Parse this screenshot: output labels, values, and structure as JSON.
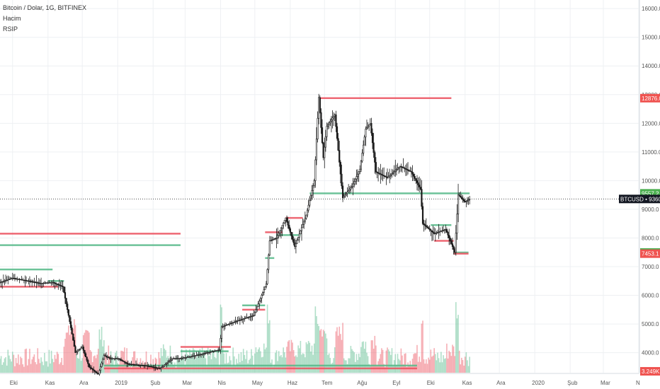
{
  "legend": {
    "symbol_line": "Bitcoin / Dolar, 1G, BITFINEX",
    "indicator_1": "Hacim",
    "indicator_2": "RSIP"
  },
  "colors": {
    "up": "#53b987",
    "down": "#eb4d5c",
    "candle_body": "#1a1a1a",
    "grid": "#eef0f3",
    "last_price_tag": "#131722",
    "red_tag": "#ef5350",
    "green_tag": "#4caf50"
  },
  "chart_data": {
    "type": "candlestick",
    "y_axis": {
      "ticks": [
        4000,
        5000,
        6000,
        7000,
        8000,
        9000,
        10000,
        11000,
        12000,
        13000,
        14000,
        15000,
        16000
      ],
      "tick_labels": [
        "4000.0",
        "5000.0",
        "6000.0",
        "7000.0",
        "8000.0",
        "9000.0",
        "10000.0",
        "11000.0",
        "12000.0",
        "13000.0",
        "14000.0",
        "15000.0",
        "16000.0"
      ],
      "range": [
        3300,
        16300
      ]
    },
    "x_axis": {
      "labels": [
        "Eki",
        "Kas",
        "Ara",
        "2019",
        "Şub",
        "Mar",
        "Nis",
        "May",
        "Haz",
        "Tem",
        "Ağu",
        "Eyl",
        "Eki",
        "Kas",
        "Ara",
        "2020",
        "Şub",
        "Mar",
        "N"
      ],
      "start": "2018-09-20",
      "end": "2020-04-01"
    },
    "price_path": [
      [
        "2018-09-20",
        6450
      ],
      [
        "2018-10-01",
        6600
      ],
      [
        "2018-10-15",
        6500
      ],
      [
        "2018-10-25",
        6420
      ],
      [
        "2018-11-05",
        6450
      ],
      [
        "2018-11-14",
        6300
      ],
      [
        "2018-11-19",
        5300
      ],
      [
        "2018-11-25",
        4000
      ],
      [
        "2018-12-01",
        4200
      ],
      [
        "2018-12-07",
        3500
      ],
      [
        "2018-12-15",
        3250
      ],
      [
        "2018-12-20",
        3900
      ],
      [
        "2018-12-25",
        3800
      ],
      [
        "2019-01-01",
        3800
      ],
      [
        "2019-01-10",
        3600
      ],
      [
        "2019-01-25",
        3550
      ],
      [
        "2019-02-07",
        3450
      ],
      [
        "2019-02-18",
        3800
      ],
      [
        "2019-02-25",
        3800
      ],
      [
        "2019-03-10",
        3900
      ],
      [
        "2019-03-31",
        4100
      ],
      [
        "2019-04-02",
        4900
      ],
      [
        "2019-04-15",
        5100
      ],
      [
        "2019-04-30",
        5300
      ],
      [
        "2019-05-11",
        6400
      ],
      [
        "2019-05-14",
        7900
      ],
      [
        "2019-05-20",
        8000
      ],
      [
        "2019-05-28",
        8700
      ],
      [
        "2019-06-05",
        7700
      ],
      [
        "2019-06-15",
        8800
      ],
      [
        "2019-06-22",
        10000
      ],
      [
        "2019-06-26",
        12900
      ],
      [
        "2019-06-30",
        10800
      ],
      [
        "2019-07-03",
        11900
      ],
      [
        "2019-07-10",
        12300
      ],
      [
        "2019-07-17",
        9400
      ],
      [
        "2019-07-25",
        9800
      ],
      [
        "2019-08-01",
        10400
      ],
      [
        "2019-08-06",
        11800
      ],
      [
        "2019-08-10",
        12000
      ],
      [
        "2019-08-15",
        10300
      ],
      [
        "2019-08-25",
        10100
      ],
      [
        "2019-09-05",
        10500
      ],
      [
        "2019-09-15",
        10300
      ],
      [
        "2019-09-23",
        9700
      ],
      [
        "2019-09-25",
        8500
      ],
      [
        "2019-10-05",
        8150
      ],
      [
        "2019-10-15",
        8300
      ],
      [
        "2019-10-23",
        7500
      ],
      [
        "2019-10-26",
        9500
      ],
      [
        "2019-11-01",
        9250
      ],
      [
        "2019-11-05",
        9360
      ]
    ],
    "horizontal_levels": [
      {
        "price": 12876,
        "from": "2019-06-26",
        "to": "2019-10-20",
        "color": "down"
      },
      {
        "price": 9557.2,
        "from": "2019-06-18",
        "to": "2019-11-05",
        "color": "up"
      },
      {
        "price": 8150,
        "from": "2018-09-20",
        "to": "2019-02-25",
        "color": "down"
      },
      {
        "price": 7750,
        "from": "2018-09-20",
        "to": "2019-02-25",
        "color": "up"
      },
      {
        "price": 6900,
        "from": "2018-09-20",
        "to": "2018-11-05",
        "color": "up"
      },
      {
        "price": 6500,
        "from": "2018-11-01",
        "to": "2018-11-15",
        "color": "up"
      },
      {
        "price": 6300,
        "from": "2018-09-20",
        "to": "2018-11-10",
        "color": "down"
      },
      {
        "price": 8700,
        "from": "2019-05-28",
        "to": "2019-06-12",
        "color": "down"
      },
      {
        "price": 8100,
        "from": "2019-05-20",
        "to": "2019-06-10",
        "color": "up"
      },
      {
        "price": 8200,
        "from": "2019-05-10",
        "to": "2019-05-25",
        "color": "down"
      },
      {
        "price": 7300,
        "from": "2019-05-10",
        "to": "2019-05-18",
        "color": "up"
      },
      {
        "price": 5650,
        "from": "2019-04-20",
        "to": "2019-05-10",
        "color": "up"
      },
      {
        "price": 5500,
        "from": "2019-04-20",
        "to": "2019-05-10",
        "color": "down"
      },
      {
        "price": 4200,
        "from": "2019-02-25",
        "to": "2019-04-10",
        "color": "down"
      },
      {
        "price": 4050,
        "from": "2019-02-25",
        "to": "2019-04-08",
        "color": "up"
      },
      {
        "price": 8450,
        "from": "2019-10-02",
        "to": "2019-10-20",
        "color": "up"
      },
      {
        "price": 7900,
        "from": "2019-10-05",
        "to": "2019-10-22",
        "color": "down"
      },
      {
        "price": 7493.7,
        "from": "2019-10-22",
        "to": "2019-11-04",
        "color": "up"
      },
      {
        "price": 7453.1,
        "from": "2019-10-22",
        "to": "2019-11-04",
        "color": "down"
      },
      {
        "price": 3550,
        "from": "2018-12-20",
        "to": "2019-09-20",
        "color": "up"
      },
      {
        "price": 3450,
        "from": "2018-12-20",
        "to": "2019-09-20",
        "color": "down"
      }
    ],
    "price_tags": [
      {
        "label": "12876.0",
        "price": 12876,
        "color": "red"
      },
      {
        "label": "9557.2",
        "price": 9557.2,
        "color": "green"
      },
      {
        "label": "BTCUSD • 9360.8",
        "price": 9360.8,
        "color": "dark"
      },
      {
        "label": "7493.7",
        "price": 7493.7,
        "color": "green"
      },
      {
        "label": "7453.1",
        "price": 7453.1,
        "color": "red"
      },
      {
        "label": "3.249K",
        "price": 3350,
        "color": "red"
      }
    ],
    "last_price": 9360.8
  }
}
